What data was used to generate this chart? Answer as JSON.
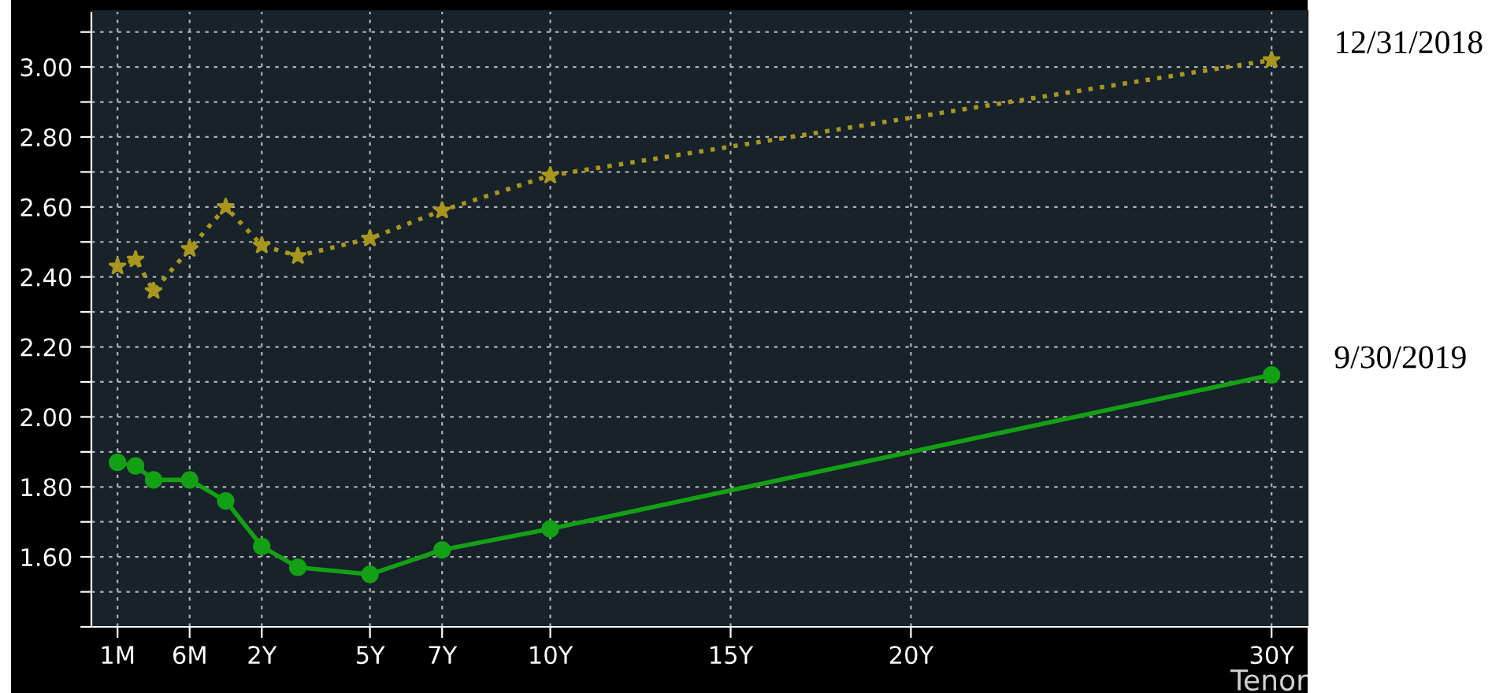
{
  "chart_data": {
    "type": "line",
    "xlabel": "Tenor",
    "categories": [
      "1M",
      null,
      null,
      null,
      "6M",
      null,
      null,
      null,
      "2Y",
      null,
      null,
      null,
      null,
      null,
      "5Y",
      null,
      null,
      null,
      "7Y",
      null,
      null,
      null,
      null,
      null,
      "10Y",
      null,
      null,
      null,
      null,
      null,
      null,
      null,
      null,
      null,
      "15Y",
      null,
      null,
      null,
      null,
      null,
      null,
      null,
      null,
      null,
      "20Y",
      null,
      null,
      null,
      null,
      null,
      null,
      null,
      null,
      null,
      null,
      null,
      null,
      null,
      null,
      null,
      null,
      null,
      null,
      null,
      "30Y"
    ],
    "ylim": [
      1.4,
      3.16
    ],
    "yticks": [
      {
        "value": 1.4,
        "label": null
      },
      {
        "value": 1.5,
        "label": null
      },
      {
        "value": 1.6,
        "label": "1.60"
      },
      {
        "value": 1.7,
        "label": null
      },
      {
        "value": 1.8,
        "label": "1.80"
      },
      {
        "value": 1.9,
        "label": null
      },
      {
        "value": 2.0,
        "label": "2.00"
      },
      {
        "value": 2.1,
        "label": null
      },
      {
        "value": 2.2,
        "label": "2.20"
      },
      {
        "value": 2.3,
        "label": null
      },
      {
        "value": 2.4,
        "label": "2.40"
      },
      {
        "value": 2.5,
        "label": null
      },
      {
        "value": 2.6,
        "label": "2.60"
      },
      {
        "value": 2.7,
        "label": null
      },
      {
        "value": 2.8,
        "label": "2.80"
      },
      {
        "value": 2.9,
        "label": null
      },
      {
        "value": 3.0,
        "label": "3.00"
      },
      {
        "value": 3.1,
        "label": null
      }
    ],
    "grid": true,
    "legend": false,
    "series": [
      {
        "name": "12/31/2018",
        "color": "#a8961e",
        "marker": "star",
        "line_style": "dotted",
        "values": [
          2.43,
          2.45,
          2.36,
          null,
          2.48,
          null,
          2.6,
          null,
          2.49,
          null,
          2.46,
          null,
          null,
          null,
          2.51,
          null,
          null,
          null,
          2.59,
          null,
          null,
          null,
          null,
          null,
          2.69,
          null,
          null,
          null,
          null,
          null,
          null,
          null,
          null,
          null,
          null,
          null,
          null,
          null,
          null,
          null,
          null,
          null,
          null,
          null,
          null,
          null,
          null,
          null,
          null,
          null,
          null,
          null,
          null,
          null,
          null,
          null,
          null,
          null,
          null,
          null,
          null,
          null,
          null,
          null,
          3.02
        ]
      },
      {
        "name": "9/30/2019",
        "color": "#14a014",
        "marker": "circle",
        "line_style": "solid",
        "values": [
          1.87,
          1.86,
          1.82,
          null,
          1.82,
          null,
          1.76,
          null,
          1.63,
          null,
          1.57,
          null,
          null,
          null,
          1.55,
          null,
          null,
          null,
          1.62,
          null,
          null,
          null,
          null,
          null,
          1.68,
          null,
          null,
          null,
          null,
          null,
          null,
          null,
          null,
          null,
          null,
          null,
          null,
          null,
          null,
          null,
          null,
          null,
          null,
          null,
          null,
          null,
          null,
          null,
          null,
          null,
          null,
          null,
          null,
          null,
          null,
          null,
          null,
          null,
          null,
          null,
          null,
          null,
          null,
          null,
          2.12
        ]
      }
    ]
  }
}
